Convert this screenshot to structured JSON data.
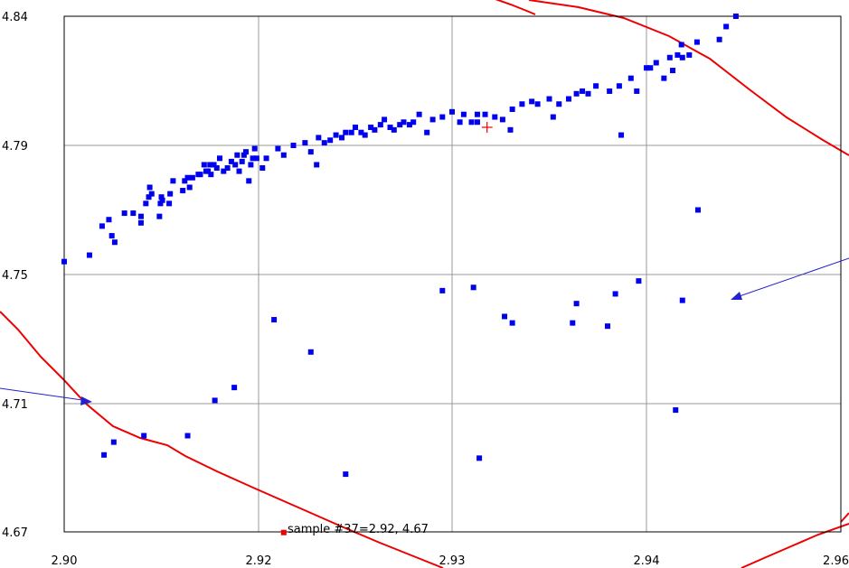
{
  "chart_data": {
    "type": "scatter",
    "title": "",
    "xlabel": "",
    "ylabel": "",
    "xlim": [
      2.9,
      2.96
    ],
    "ylim": [
      4.67,
      4.84
    ],
    "x_ticks": [
      2.9,
      2.92,
      2.93,
      2.94,
      2.96
    ],
    "x_tick_labels": [
      "2.90",
      "2.92",
      "2.93",
      "2.94",
      "2.96"
    ],
    "y_ticks": [
      4.84,
      4.79,
      4.75,
      4.71,
      4.67
    ],
    "y_tick_labels": [
      "4.84",
      "4.79",
      "4.75",
      "4.71",
      "4.67"
    ],
    "x_gridlines": [
      2.92,
      2.93,
      2.94
    ],
    "y_gridlines": [
      4.79,
      4.75,
      4.71
    ],
    "grid": true,
    "legend": "none",
    "colors": {
      "points": "#0000ee",
      "curve": "#ee0000",
      "arrow": "#2222cc",
      "highlight": "#ee0000",
      "grid": "#999999"
    },
    "series": [
      {
        "values": [
          [
            2.9,
            4.754
          ],
          [
            2.9026,
            4.756
          ],
          [
            2.9039,
            4.765
          ],
          [
            2.9046,
            4.767
          ],
          [
            2.9049,
            4.762
          ],
          [
            2.9052,
            4.76
          ],
          [
            2.9062,
            4.769
          ],
          [
            2.9071,
            4.769
          ],
          [
            2.9079,
            4.766
          ],
          [
            2.9079,
            4.768
          ],
          [
            2.9084,
            4.772
          ],
          [
            2.9087,
            4.774
          ],
          [
            2.9088,
            4.777
          ],
          [
            2.909,
            4.775
          ],
          [
            2.9098,
            4.768
          ],
          [
            2.9099,
            4.772
          ],
          [
            2.91,
            4.774
          ],
          [
            2.9101,
            4.773
          ],
          [
            2.9108,
            4.772
          ],
          [
            2.9109,
            4.775
          ],
          [
            2.9112,
            4.779
          ],
          [
            2.9122,
            4.776
          ],
          [
            2.9124,
            4.779
          ],
          [
            2.9127,
            4.78
          ],
          [
            2.9129,
            4.777
          ],
          [
            2.9132,
            4.78
          ],
          [
            2.9138,
            4.781
          ],
          [
            2.914,
            4.781
          ],
          [
            2.9144,
            4.784
          ],
          [
            2.9146,
            4.782
          ],
          [
            2.9148,
            4.782
          ],
          [
            2.915,
            4.784
          ],
          [
            2.9151,
            4.781
          ],
          [
            2.9154,
            4.784
          ],
          [
            2.9157,
            4.783
          ],
          [
            2.916,
            4.786
          ],
          [
            2.9164,
            4.782
          ],
          [
            2.9168,
            4.783
          ],
          [
            2.9172,
            4.785
          ],
          [
            2.9176,
            4.784
          ],
          [
            2.9178,
            4.787
          ],
          [
            2.918,
            4.782
          ],
          [
            2.9183,
            4.785
          ],
          [
            2.9185,
            4.787
          ],
          [
            2.9187,
            4.788
          ],
          [
            2.919,
            4.779
          ],
          [
            2.9192,
            4.784
          ],
          [
            2.9194,
            4.786
          ],
          [
            2.9196,
            4.789
          ],
          [
            2.9198,
            4.786
          ],
          [
            2.9202,
            4.783
          ],
          [
            2.9204,
            4.786
          ],
          [
            2.921,
            4.789
          ],
          [
            2.9213,
            4.787
          ],
          [
            2.9218,
            4.79
          ],
          [
            2.9224,
            4.791
          ],
          [
            2.9227,
            4.788
          ],
          [
            2.923,
            4.784
          ],
          [
            2.9231,
            4.793
          ],
          [
            2.9234,
            4.791
          ],
          [
            2.9237,
            4.792
          ],
          [
            2.924,
            4.794
          ],
          [
            2.9243,
            4.793
          ],
          [
            2.9245,
            4.795
          ],
          [
            2.9248,
            4.795
          ],
          [
            2.925,
            4.797
          ],
          [
            2.9253,
            4.795
          ],
          [
            2.9255,
            4.794
          ],
          [
            2.9258,
            4.797
          ],
          [
            2.926,
            4.796
          ],
          [
            2.9263,
            4.798
          ],
          [
            2.9265,
            4.8
          ],
          [
            2.9268,
            4.797
          ],
          [
            2.927,
            4.796
          ],
          [
            2.9273,
            4.798
          ],
          [
            2.9275,
            4.799
          ],
          [
            2.9278,
            4.798
          ],
          [
            2.928,
            4.799
          ],
          [
            2.9283,
            4.802
          ],
          [
            2.9287,
            4.795
          ],
          [
            2.929,
            4.8
          ],
          [
            2.9295,
            4.801
          ],
          [
            2.93,
            4.803
          ],
          [
            2.9304,
            4.799
          ],
          [
            2.9306,
            4.802
          ],
          [
            2.931,
            4.799
          ],
          [
            2.9313,
            4.802
          ],
          [
            2.9317,
            4.802
          ],
          [
            2.9322,
            4.801
          ],
          [
            2.9326,
            4.8
          ],
          [
            2.9331,
            4.804
          ],
          [
            2.9336,
            4.806
          ],
          [
            2.9341,
            4.807
          ],
          [
            2.9344,
            4.806
          ],
          [
            2.935,
            4.808
          ],
          [
            2.9355,
            4.806
          ],
          [
            2.936,
            4.808
          ],
          [
            2.9364,
            4.81
          ],
          [
            2.9367,
            4.811
          ],
          [
            2.937,
            4.81
          ],
          [
            2.9374,
            4.813
          ],
          [
            2.9381,
            4.811
          ],
          [
            2.9386,
            4.813
          ],
          [
            2.9392,
            4.816
          ],
          [
            2.9395,
            4.811
          ],
          [
            2.94,
            4.82
          ],
          [
            2.9404,
            4.82
          ],
          [
            2.941,
            4.822
          ],
          [
            2.9418,
            4.816
          ],
          [
            2.9424,
            4.824
          ],
          [
            2.9432,
            4.825
          ],
          [
            2.9436,
            4.829
          ],
          [
            2.9444,
            4.825
          ],
          [
            2.9452,
            4.83
          ],
          [
            2.9475,
            4.831
          ],
          [
            2.9482,
            4.836
          ],
          [
            2.9492,
            4.84
          ],
          [
            2.9313,
            4.799
          ],
          [
            2.933,
            4.796
          ],
          [
            2.9352,
            4.801
          ],
          [
            2.9387,
            4.794
          ],
          [
            2.9427,
            4.819
          ],
          [
            2.9437,
            4.824
          ],
          [
            2.9453,
            4.77
          ],
          [
            2.9437,
            4.742
          ],
          [
            2.9295,
            4.745
          ],
          [
            2.9311,
            4.746
          ],
          [
            2.9396,
            4.748
          ],
          [
            2.9384,
            4.744
          ],
          [
            2.9364,
            4.741
          ],
          [
            2.9327,
            4.737
          ],
          [
            2.9331,
            4.735
          ],
          [
            2.9362,
            4.735
          ],
          [
            2.938,
            4.734
          ],
          [
            2.9208,
            4.736
          ],
          [
            2.9227,
            4.726
          ],
          [
            2.9175,
            4.715
          ],
          [
            2.9155,
            4.711
          ],
          [
            2.9127,
            4.7
          ],
          [
            2.9082,
            4.7
          ],
          [
            2.9051,
            4.698
          ],
          [
            2.9041,
            4.694
          ],
          [
            2.9245,
            4.688
          ],
          [
            2.9314,
            4.693
          ],
          [
            2.943,
            4.708
          ]
        ]
      }
    ],
    "highlight_point": {
      "x": 2.9213,
      "y": 4.6698
    },
    "crosshair": {
      "x": 2.9318,
      "y": 4.797
    },
    "annotation": "sample #37=2.92, 4.67"
  }
}
